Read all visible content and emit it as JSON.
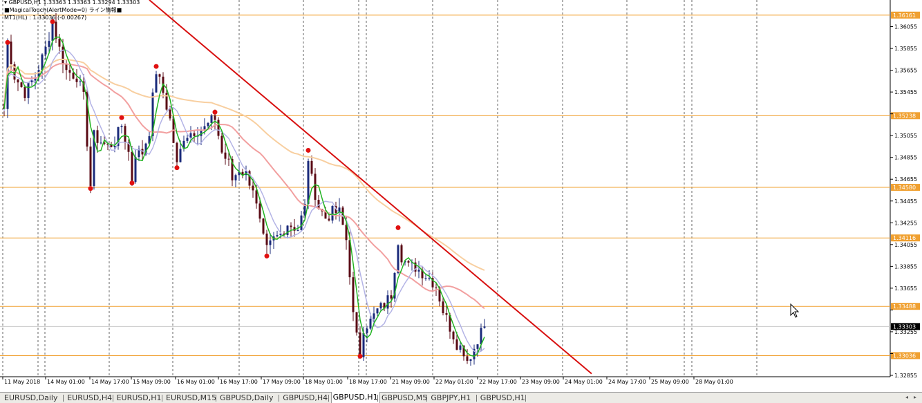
{
  "header": {
    "symbol_line": "GBPUSD,H1  1.33363 1.33363 1.33294 1.33303",
    "indicator_line": "MagicalTouch(AlertMode=0) ライン情報",
    "mt1_line": "MT1(HL) : 1.33036 (-0.00267)"
  },
  "price_scale": [
    "1.36055",
    "1.35855",
    "1.35655",
    "1.35455",
    "1.35255",
    "1.35055",
    "1.34855",
    "1.34655",
    "1.34455",
    "1.34255",
    "1.34055",
    "1.33855",
    "1.33655",
    "1.33455",
    "1.33255",
    "1.33055",
    "1.32855"
  ],
  "level_labels": [
    "1.36161",
    "1.35238",
    "1.34580",
    "1.34116",
    "1.33488",
    "1.33036"
  ],
  "current_price": "1.33303",
  "time_axis": [
    "11 May 2018",
    "14 May 01:00",
    "14 May 17:00",
    "15 May 09:00",
    "16 May 01:00",
    "16 May 17:00",
    "17 May 09:00",
    "18 May 01:00",
    "18 May 17:00",
    "21 May 09:00",
    "22 May 01:00",
    "22 May 17:00",
    "23 May 09:00",
    "24 May 01:00",
    "24 May 17:00",
    "25 May 09:00",
    "28 May 01:00"
  ],
  "tabs": [
    "EURUSD,Daily",
    "EURUSD,H4",
    "EURUSD,H1",
    "EURUSD,M15",
    "GBPUSD,Daily",
    "GBPUSD,H4",
    "GBPUSD,H1",
    "GBPUSD,M5",
    "GBPJPY,H1",
    "GBPUSD,H1"
  ],
  "active_tab": "GBPUSD,H1",
  "colors": {
    "bull": "#1a2a7a",
    "bear": "#5a0a14",
    "level": "#f0a030",
    "trendline": "#d81010",
    "marker": "#e01010",
    "ma_fast": "#22b422",
    "ma_mid": "#f2a0a0",
    "ma_slow": "#f8cfa0",
    "ma_violet": "#b4b4e6"
  },
  "chart_data": {
    "type": "candlestick",
    "symbol": "GBPUSD",
    "timeframe": "H1",
    "ylim": [
      1.32855,
      1.36255
    ],
    "horizontal_levels": [
      1.36161,
      1.35238,
      1.3458,
      1.34116,
      1.33488,
      1.33036
    ],
    "last_price": 1.33303,
    "trendline": {
      "from": {
        "bar": 42,
        "price": 1.363
      },
      "to": {
        "bar": 170,
        "price": 1.3287
      }
    },
    "swing_markers": [
      {
        "bar": 1,
        "price": 1.3591
      },
      {
        "bar": 14,
        "price": 1.361
      },
      {
        "bar": 25,
        "price": 1.3457
      },
      {
        "bar": 34,
        "price": 1.3522
      },
      {
        "bar": 37,
        "price": 1.3462
      },
      {
        "bar": 44,
        "price": 1.3569
      },
      {
        "bar": 50,
        "price": 1.3476
      },
      {
        "bar": 61,
        "price": 1.3527
      },
      {
        "bar": 76,
        "price": 1.3395
      },
      {
        "bar": 88,
        "price": 1.3492
      },
      {
        "bar": 103,
        "price": 1.3303
      },
      {
        "bar": 114,
        "price": 1.3421
      }
    ],
    "path_points": [
      [
        0,
        1.353
      ],
      [
        1,
        1.3591
      ],
      [
        3,
        1.356
      ],
      [
        6,
        1.3545
      ],
      [
        9,
        1.356
      ],
      [
        12,
        1.3585
      ],
      [
        14,
        1.361
      ],
      [
        16,
        1.3585
      ],
      [
        18,
        1.3565
      ],
      [
        21,
        1.356
      ],
      [
        23,
        1.354
      ],
      [
        24,
        1.35
      ],
      [
        25,
        1.346
      ],
      [
        26,
        1.3505
      ],
      [
        28,
        1.35
      ],
      [
        30,
        1.3495
      ],
      [
        32,
        1.35
      ],
      [
        34,
        1.3515
      ],
      [
        36,
        1.349
      ],
      [
        37,
        1.3465
      ],
      [
        38,
        1.349
      ],
      [
        40,
        1.349
      ],
      [
        42,
        1.351
      ],
      [
        43,
        1.354
      ],
      [
        44,
        1.3565
      ],
      [
        46,
        1.3545
      ],
      [
        48,
        1.352
      ],
      [
        49,
        1.35
      ],
      [
        50,
        1.3478
      ],
      [
        52,
        1.3505
      ],
      [
        55,
        1.351
      ],
      [
        58,
        1.3512
      ],
      [
        61,
        1.3522
      ],
      [
        63,
        1.349
      ],
      [
        65,
        1.348
      ],
      [
        66,
        1.3465
      ],
      [
        68,
        1.3475
      ],
      [
        70,
        1.347
      ],
      [
        72,
        1.3458
      ],
      [
        73,
        1.344
      ],
      [
        74,
        1.3425
      ],
      [
        75,
        1.341
      ],
      [
        76,
        1.34
      ],
      [
        78,
        1.341
      ],
      [
        80,
        1.3415
      ],
      [
        82,
        1.3425
      ],
      [
        85,
        1.342
      ],
      [
        87,
        1.344
      ],
      [
        88,
        1.3485
      ],
      [
        89,
        1.3465
      ],
      [
        91,
        1.344
      ],
      [
        93,
        1.343
      ],
      [
        95,
        1.3435
      ],
      [
        97,
        1.3435
      ],
      [
        99,
        1.341
      ],
      [
        100,
        1.338
      ],
      [
        101,
        1.334
      ],
      [
        102,
        1.332
      ],
      [
        103,
        1.3305
      ],
      [
        104,
        1.333
      ],
      [
        106,
        1.3335
      ],
      [
        108,
        1.3345
      ],
      [
        110,
        1.335
      ],
      [
        112,
        1.336
      ],
      [
        114,
        1.341
      ],
      [
        115,
        1.3395
      ],
      [
        117,
        1.3385
      ],
      [
        119,
        1.3385
      ],
      [
        121,
        1.338
      ],
      [
        123,
        1.3375
      ],
      [
        125,
        1.3368
      ],
      [
        127,
        1.3345
      ],
      [
        129,
        1.333
      ],
      [
        131,
        1.3315
      ],
      [
        133,
        1.3308
      ],
      [
        134,
        1.33
      ],
      [
        135,
        1.3305
      ],
      [
        137,
        1.3315
      ],
      [
        138,
        1.3335
      ],
      [
        139,
        1.333
      ]
    ]
  }
}
